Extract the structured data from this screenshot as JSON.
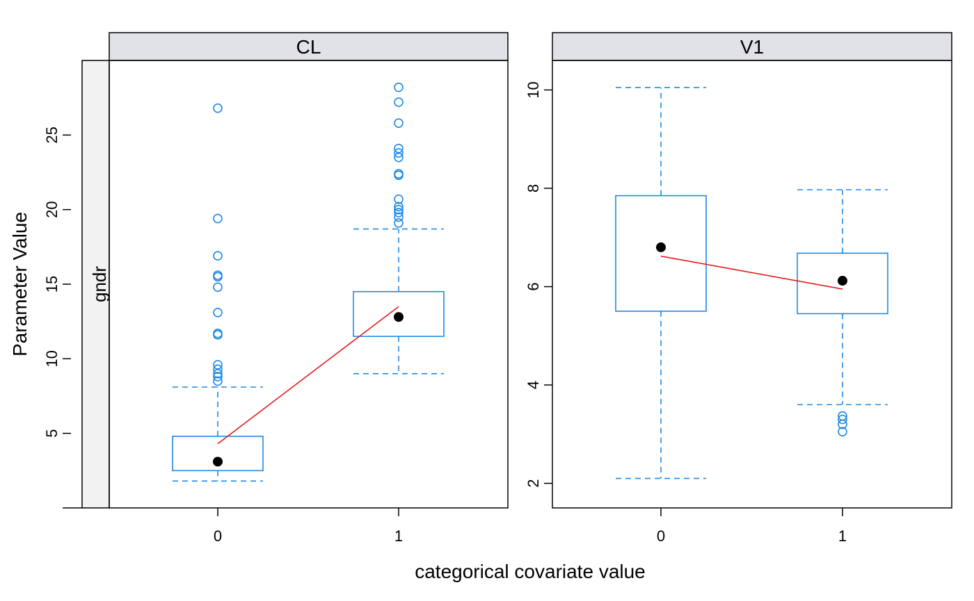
{
  "chart_data": {
    "type": "box",
    "xlabel": "categorical covariate value",
    "ylabel": "Parameter Value",
    "strip_left_label": "gndr",
    "colors": {
      "box": "#1E88E5",
      "median_point": "#000000",
      "mean_line": "#E41A1C",
      "strip_bg": "#E1E1E8",
      "left_strip_bg": "#F2F2F2"
    },
    "panels": [
      {
        "title": "CL",
        "ylim": [
          0,
          30
        ],
        "yticks": [
          {
            "value": 5,
            "label": "5"
          },
          {
            "value": 10,
            "label": "10"
          },
          {
            "value": 15,
            "label": "15"
          },
          {
            "value": 20,
            "label": "20"
          },
          {
            "value": 25,
            "label": "25"
          }
        ],
        "categories": [
          {
            "label": "0",
            "whisker_low": 1.8,
            "q1": 2.5,
            "median": 3.1,
            "q3": 4.8,
            "whisker_high": 8.1,
            "mean": 4.3,
            "outliers": [
              8.5,
              8.8,
              9.0,
              9.3,
              9.6,
              11.6,
              11.7,
              13.1,
              14.8,
              15.5,
              15.6,
              16.9,
              19.4,
              26.8
            ]
          },
          {
            "label": "1",
            "whisker_low": 9.0,
            "q1": 11.5,
            "median": 12.8,
            "q3": 14.5,
            "whisker_high": 18.7,
            "mean": 13.5,
            "outliers": [
              19.1,
              19.5,
              19.8,
              20.0,
              20.2,
              20.7,
              22.3,
              22.4,
              23.5,
              23.8,
              24.1,
              25.8,
              27.2,
              28.2
            ]
          }
        ]
      },
      {
        "title": "V1",
        "ylim": [
          1.5,
          10.6
        ],
        "yticks": [
          {
            "value": 2,
            "label": "2"
          },
          {
            "value": 4,
            "label": "4"
          },
          {
            "value": 6,
            "label": "6"
          },
          {
            "value": 8,
            "label": "8"
          },
          {
            "value": 10,
            "label": "10"
          }
        ],
        "categories": [
          {
            "label": "0",
            "whisker_low": 2.1,
            "q1": 5.5,
            "median": 6.8,
            "q3": 7.85,
            "whisker_high": 10.05,
            "mean": 6.62,
            "outliers": []
          },
          {
            "label": "1",
            "whisker_low": 3.6,
            "q1": 5.45,
            "median": 6.12,
            "q3": 6.68,
            "whisker_high": 7.97,
            "mean": 5.95,
            "outliers": [
              3.05,
              3.2,
              3.3,
              3.37
            ]
          }
        ]
      }
    ]
  }
}
